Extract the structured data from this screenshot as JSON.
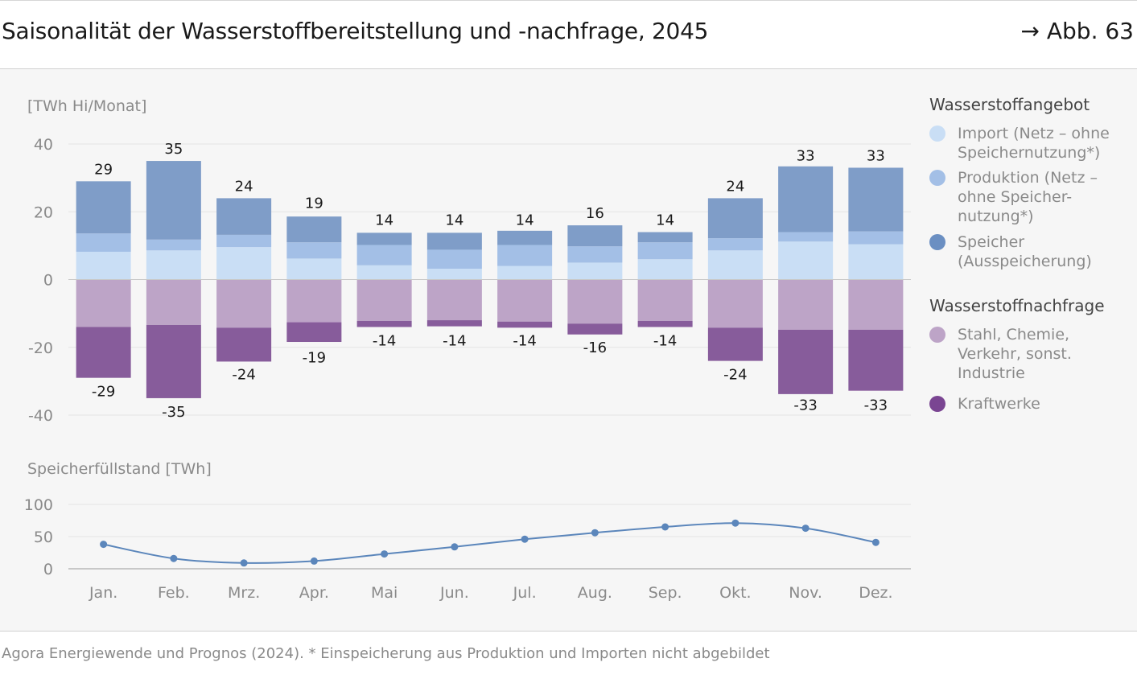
{
  "header": {
    "title": "Saisonalität der Wasserstoffbereitstellung und -nachfrage, 2045",
    "figure_ref": "→ Abb. 63"
  },
  "legend": {
    "supply_heading": "Wasserstoffangebot",
    "supply_items": [
      {
        "label": "Import (Netz – ohne Speichernutzung*)",
        "color": "#c9def5"
      },
      {
        "label": "Produktion (Netz – ohne Speicher-nutzung*)",
        "color": "#a3bfe6"
      },
      {
        "label": "Speicher (Ausspeicherung)",
        "color": "#7f9dc8"
      }
    ],
    "demand_heading": "Wasserstoffnachfrage",
    "demand_items": [
      {
        "label": "Stahl, Chemie, Verkehr, sonst. Industrie",
        "color": "#bda4c7"
      },
      {
        "label": "Kraftwerke",
        "color": "#875c9b"
      }
    ]
  },
  "source_note": "Agora Energiewende und Prognos (2024). * Einspeicherung aus Produktion und Importen nicht abgebildet",
  "chart_data": [
    {
      "type": "bar",
      "stacked": true,
      "title": "Saisonalität der Wasserstoffbereitstellung und -nachfrage, 2045",
      "ylabel": "[TWh Hi/Monat]",
      "ylim": [
        -40,
        40
      ],
      "yticks": [
        40,
        20,
        0,
        -20,
        -40
      ],
      "categories": [
        "Jan.",
        "Feb.",
        "Mrz.",
        "Apr.",
        "Mai",
        "Jun.",
        "Jul.",
        "Aug.",
        "Sep.",
        "Okt.",
        "Nov.",
        "Dez."
      ],
      "series": [
        {
          "name": "Import (Netz – ohne Speichernutzung*)",
          "color": "#c9def5",
          "values": [
            8.2,
            8.6,
            9.6,
            6.2,
            4.2,
            3.2,
            4.0,
            5.0,
            6.0,
            8.6,
            11.2,
            10.4
          ]
        },
        {
          "name": "Produktion (Netz – ohne Speicher-nutzung*)",
          "color": "#a3bfe6",
          "values": [
            5.4,
            3.2,
            3.6,
            4.8,
            6.0,
            5.6,
            6.2,
            4.8,
            5.0,
            3.6,
            2.8,
            3.8
          ]
        },
        {
          "name": "Speicher (Ausspeicherung)",
          "color": "#7f9dc8",
          "values": [
            15.4,
            23.2,
            10.8,
            7.6,
            3.6,
            5.0,
            4.2,
            6.2,
            3.0,
            11.8,
            19.4,
            18.8
          ]
        },
        {
          "name": "Stahl, Chemie, Verkehr, sonst. Industrie",
          "color": "#bda4c7",
          "values": [
            -14,
            -13.4,
            -14.2,
            -12.6,
            -12.2,
            -12,
            -12.4,
            -13,
            -12.2,
            -14.2,
            -14.8,
            -14.8
          ]
        },
        {
          "name": "Kraftwerke",
          "color": "#875c9b",
          "values": [
            -15,
            -21.6,
            -10,
            -5.8,
            -1.8,
            -1.8,
            -1.8,
            -3.2,
            -1.8,
            -9.8,
            -19,
            -18
          ]
        }
      ],
      "totals_positive": [
        29,
        35,
        24,
        19,
        14,
        14,
        14,
        16,
        14,
        24,
        33,
        33
      ],
      "totals_negative": [
        -29,
        -35,
        -24,
        -19,
        -14,
        -14,
        -14,
        -16,
        -14,
        -24,
        -33,
        -33
      ]
    },
    {
      "type": "line",
      "title": "Speicherfüllstand [TWh]",
      "ylim": [
        0,
        100
      ],
      "yticks": [
        100,
        50,
        0
      ],
      "categories": [
        "Jan.",
        "Feb.",
        "Mrz.",
        "Apr.",
        "Mai",
        "Jun.",
        "Jul.",
        "Aug.",
        "Sep.",
        "Okt.",
        "Nov.",
        "Dez."
      ],
      "series": [
        {
          "name": "Speicherfüllstand",
          "color": "#5b86bb",
          "values": [
            38,
            16,
            9,
            12,
            23,
            34,
            46,
            56,
            65,
            71,
            63,
            41
          ]
        }
      ]
    }
  ]
}
